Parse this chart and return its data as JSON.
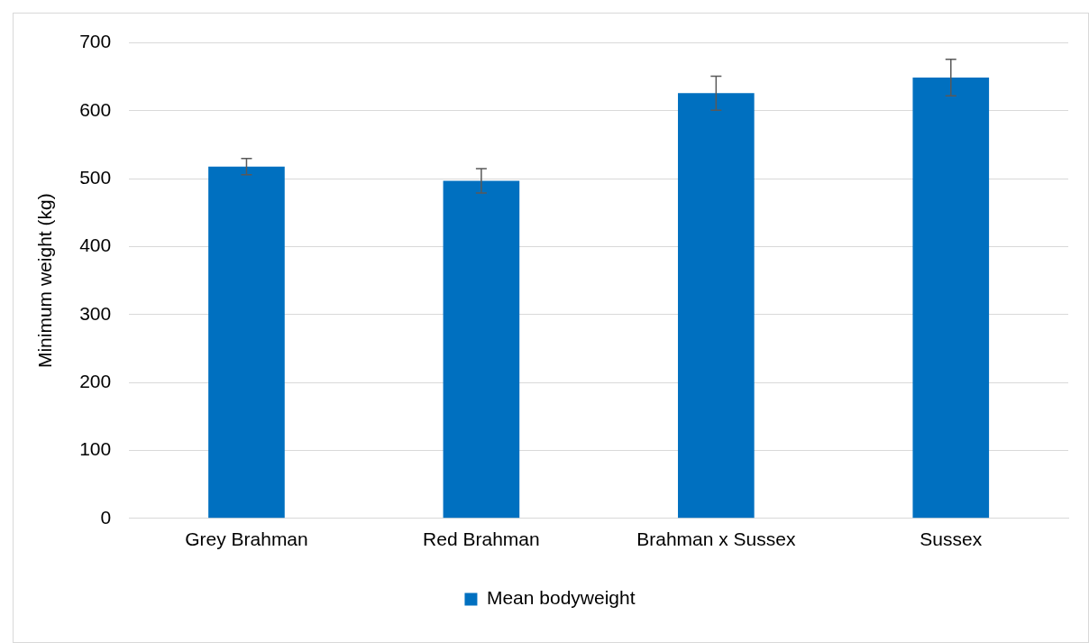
{
  "chart_data": {
    "type": "bar",
    "ylabel": "Minimum weight (kg)",
    "categories": [
      "Grey Brahman",
      "Red Brahman",
      "Brahman x Sussex",
      "Sussex"
    ],
    "series": [
      {
        "name": "Mean bodyweight",
        "color": "#0070c0",
        "values": [
          518,
          497,
          626,
          649
        ],
        "errors": [
          12,
          18,
          25,
          27
        ]
      }
    ],
    "ylim": [
      0,
      700
    ],
    "yticks": [
      0,
      100,
      200,
      300,
      400,
      500,
      600,
      700
    ],
    "grid": "y",
    "legend": "bottom"
  }
}
